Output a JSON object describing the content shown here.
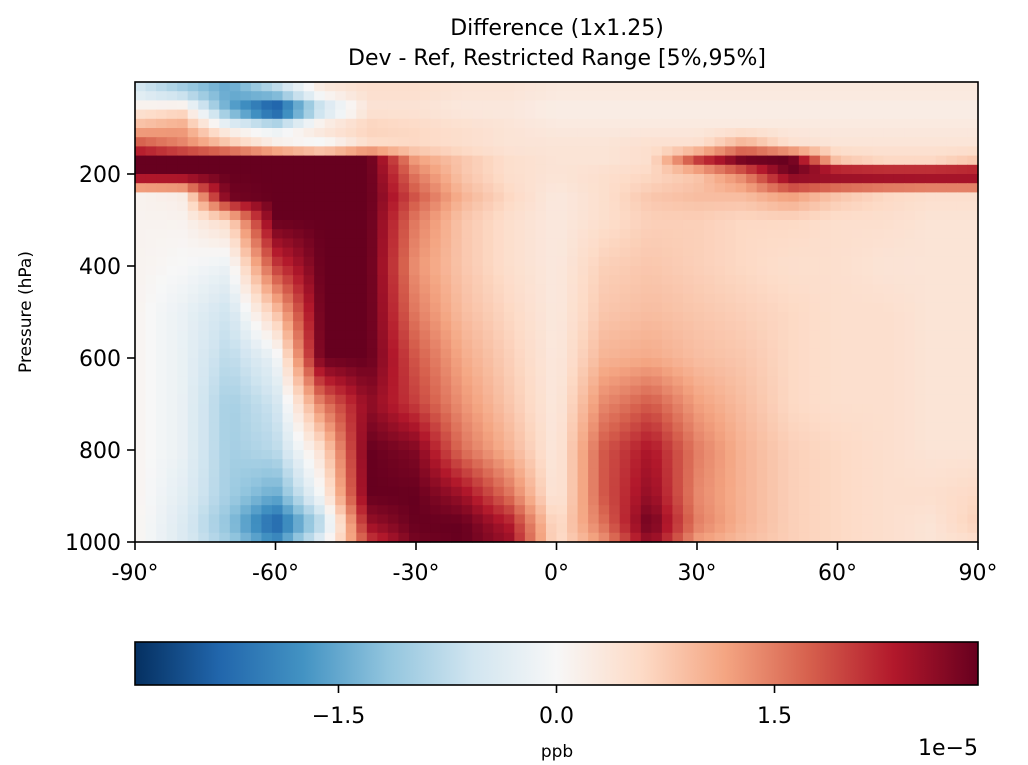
{
  "chart_data": {
    "type": "heatmap",
    "title": "Difference (1x1.25)",
    "subtitle": "Dev - Ref, Restricted Range [5%,95%]",
    "xlabel": "",
    "ylabel": "Pressure (hPa)",
    "xlim": [
      -90,
      90
    ],
    "ylim": [
      1000,
      0
    ],
    "xticks": [
      -90,
      -60,
      -30,
      0,
      30,
      60,
      90
    ],
    "xtick_labels": [
      "-90°",
      "-60°",
      "-30°",
      "0°",
      "30°",
      "60°",
      "90°"
    ],
    "yticks": [
      200,
      400,
      600,
      800,
      1000
    ],
    "ytick_labels": [
      "200",
      "400",
      "600",
      "800",
      "1000"
    ],
    "colormap": "RdBu_r",
    "colormap_stops": [
      "#053061",
      "#2166ac",
      "#4393c3",
      "#92c5de",
      "#d1e5f0",
      "#f7f7f7",
      "#fddbc7",
      "#f4a582",
      "#d6604d",
      "#b2182b",
      "#67001f"
    ],
    "colorbar": {
      "orientation": "horizontal",
      "range": [
        -2.9e-05,
        2.9e-05
      ],
      "ticks": [
        -1.5e-05,
        0,
        1.5e-05
      ],
      "tick_labels": [
        "−1.5",
        "0.0",
        "1.5"
      ],
      "label": "ppb",
      "offset_text": "1e−5"
    },
    "grid": false,
    "scale": 1e-05,
    "x_columns": [
      -90,
      -80,
      -70,
      -60,
      -50,
      -40,
      -30,
      -20,
      -10,
      0,
      10,
      20,
      30,
      40,
      50,
      60,
      70,
      80,
      90
    ],
    "y_rows": [
      20,
      60,
      100,
      140,
      170,
      200,
      250,
      300,
      400,
      500,
      600,
      700,
      800,
      900,
      960,
      1000
    ],
    "values": [
      [
        -0.5,
        -1.0,
        -1.5,
        -0.8,
        0.3,
        0.5,
        0.5,
        0.4,
        0.4,
        0.3,
        0.3,
        0.3,
        0.3,
        0.3,
        0.3,
        0.3,
        0.3,
        0.3,
        0.3
      ],
      [
        0.3,
        0.5,
        -1.5,
        -2.9,
        -0.8,
        0.4,
        0.4,
        0.3,
        0.3,
        0.2,
        0.2,
        0.2,
        0.2,
        0.2,
        0.2,
        0.2,
        0.2,
        0.2,
        0.2
      ],
      [
        1.0,
        1.2,
        0.0,
        -0.3,
        0.5,
        0.7,
        0.6,
        0.5,
        0.4,
        0.3,
        0.3,
        0.3,
        0.3,
        0.3,
        0.3,
        0.3,
        0.3,
        0.3,
        0.3
      ],
      [
        2.0,
        1.5,
        1.0,
        0.3,
        -0.2,
        0.5,
        0.6,
        0.5,
        0.4,
        0.4,
        0.4,
        0.5,
        0.5,
        1.2,
        0.5,
        0.4,
        0.4,
        0.4,
        0.4
      ],
      [
        2.9,
        2.9,
        2.9,
        2.9,
        2.9,
        2.9,
        1.2,
        0.8,
        0.5,
        0.4,
        0.4,
        0.5,
        2.0,
        2.8,
        2.9,
        0.8,
        0.6,
        0.6,
        0.8
      ],
      [
        2.9,
        2.9,
        2.9,
        2.9,
        2.9,
        2.9,
        1.5,
        0.8,
        0.5,
        0.4,
        0.5,
        0.6,
        0.8,
        1.5,
        2.9,
        2.9,
        2.9,
        2.9,
        2.9
      ],
      [
        0.1,
        0.2,
        2.8,
        2.9,
        2.9,
        2.9,
        1.8,
        1.0,
        0.6,
        0.3,
        0.5,
        0.8,
        0.9,
        0.9,
        1.2,
        0.8,
        0.6,
        0.5,
        0.5
      ],
      [
        0.1,
        0.1,
        0.6,
        2.9,
        2.9,
        2.9,
        1.5,
        0.8,
        0.5,
        0.3,
        0.5,
        0.7,
        0.7,
        0.6,
        0.6,
        0.5,
        0.5,
        0.4,
        0.4
      ],
      [
        0.1,
        0.0,
        -0.2,
        2.0,
        2.9,
        2.9,
        1.3,
        0.8,
        0.5,
        0.3,
        0.7,
        0.8,
        0.7,
        0.6,
        0.5,
        0.5,
        0.4,
        0.4,
        0.4
      ],
      [
        0.1,
        -0.2,
        -0.6,
        0.8,
        2.9,
        2.9,
        1.5,
        0.9,
        0.6,
        0.3,
        0.8,
        0.9,
        0.8,
        0.7,
        0.6,
        0.5,
        0.5,
        0.4,
        0.4
      ],
      [
        0.1,
        -0.2,
        -0.8,
        -0.2,
        2.9,
        2.9,
        1.8,
        1.1,
        0.7,
        0.3,
        1.0,
        1.1,
        0.9,
        0.8,
        0.6,
        0.5,
        0.5,
        0.4,
        0.4
      ],
      [
        0.1,
        -0.2,
        -1.0,
        -0.6,
        1.5,
        2.6,
        2.0,
        1.3,
        0.8,
        0.3,
        1.4,
        1.8,
        1.2,
        0.9,
        0.6,
        0.5,
        0.5,
        0.4,
        0.4
      ],
      [
        0.1,
        -0.2,
        -1.0,
        -0.8,
        0.5,
        2.9,
        2.7,
        1.6,
        1.0,
        0.3,
        1.8,
        2.4,
        1.5,
        1.0,
        0.7,
        0.6,
        0.5,
        0.4,
        0.4
      ],
      [
        0.1,
        -0.3,
        -1.0,
        -1.5,
        0.0,
        2.9,
        2.9,
        2.5,
        1.6,
        0.3,
        1.8,
        2.6,
        1.4,
        1.0,
        0.7,
        0.6,
        0.5,
        0.5,
        0.6
      ],
      [
        0.1,
        -0.4,
        -1.2,
        -2.4,
        -0.8,
        2.5,
        2.9,
        2.9,
        2.3,
        0.5,
        1.6,
        2.9,
        1.5,
        1.0,
        0.7,
        0.6,
        0.5,
        0.4,
        0.7
      ],
      [
        0.1,
        -0.4,
        -1.0,
        -1.8,
        -0.2,
        2.0,
        2.8,
        2.9,
        2.5,
        0.5,
        1.3,
        2.6,
        1.2,
        0.9,
        0.7,
        0.6,
        0.5,
        0.4,
        0.5
      ]
    ]
  }
}
